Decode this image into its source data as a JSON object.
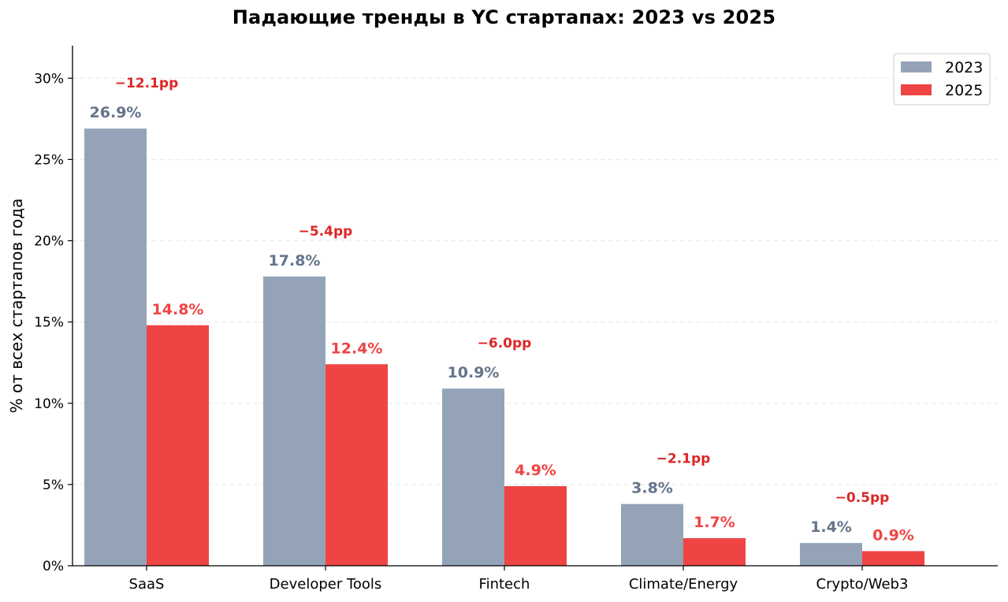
{
  "chart_data": {
    "type": "bar",
    "title": "Падающие тренды в YC стартапах: 2023 vs 2025",
    "xlabel": "",
    "ylabel": "% от всех стартапов года",
    "ylim": [
      0,
      32
    ],
    "yticks": [
      0,
      5,
      10,
      15,
      20,
      25,
      30
    ],
    "ytick_labels": [
      "0%",
      "5%",
      "10%",
      "15%",
      "20%",
      "25%",
      "30%"
    ],
    "categories": [
      "SaaS",
      "Developer Tools",
      "Fintech",
      "Climate/Energy",
      "Crypto/Web3"
    ],
    "series": [
      {
        "name": "2023",
        "color": "#94a3b8",
        "label_color": "#64748b",
        "values": [
          26.9,
          17.8,
          10.9,
          3.8,
          1.4
        ],
        "labels": [
          "26.9%",
          "17.8%",
          "10.9%",
          "3.8%",
          "1.4%"
        ]
      },
      {
        "name": "2025",
        "color": "#ef4444",
        "label_color": "#ef4444",
        "values": [
          14.8,
          12.4,
          4.9,
          1.7,
          0.9
        ],
        "labels": [
          "14.8%",
          "12.4%",
          "4.9%",
          "1.7%",
          "0.9%"
        ]
      }
    ],
    "annotations": [
      "−12.1pp",
      "−5.4pp",
      "−6.0pp",
      "−2.1pp",
      "−0.5pp"
    ],
    "annotation_color": "#dc2626",
    "grid": true,
    "legend_position": "top-right"
  }
}
